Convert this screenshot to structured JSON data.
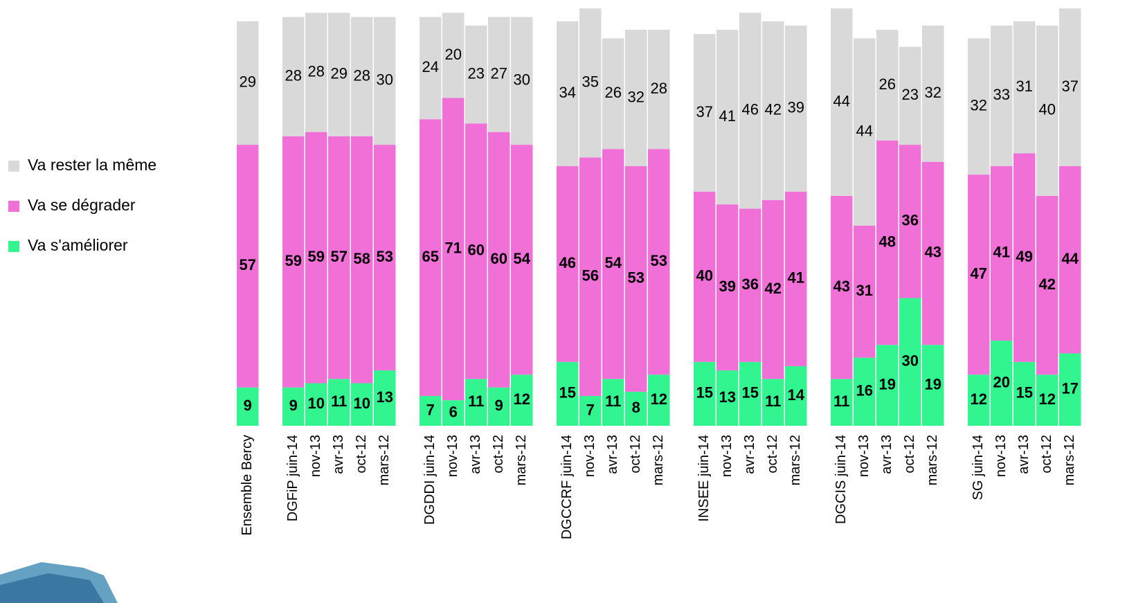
{
  "chart_data": {
    "type": "stacked_bar",
    "categories": [
      "Ensemble Bercy",
      null,
      "DGFiP juin-14",
      "nov-13",
      "avr-13",
      "oct-12",
      "mars-12",
      null,
      "DGDDI juin-14",
      "nov-13",
      "avr-13",
      "oct-12",
      "mars-12",
      null,
      "DGCCRF juin-14",
      "nov-13",
      "avr-13",
      "oct-12",
      "mars-12",
      null,
      "INSEE juin-14",
      "nov-13",
      "avr-13",
      "oct-12",
      "mars-12",
      null,
      "DGCIS juin-14",
      "nov-13",
      "avr-13",
      "oct-12",
      "mars-12",
      null,
      "SG juin-14",
      "nov-13",
      "avr-13",
      "oct-12",
      "mars-12"
    ],
    "series": [
      {
        "name": "Va s'améliorer",
        "color": "#33f590",
        "values": [
          9,
          null,
          9,
          10,
          11,
          10,
          13,
          null,
          7,
          6,
          11,
          9,
          12,
          null,
          15,
          7,
          11,
          8,
          12,
          null,
          15,
          13,
          15,
          11,
          14,
          null,
          11,
          16,
          19,
          30,
          19,
          null,
          12,
          20,
          15,
          12,
          17
        ]
      },
      {
        "name": "Va se dégrader",
        "color": "#f070d8",
        "values": [
          57,
          null,
          59,
          59,
          57,
          58,
          53,
          null,
          65,
          71,
          60,
          60,
          54,
          null,
          46,
          56,
          54,
          53,
          53,
          null,
          40,
          39,
          36,
          42,
          41,
          null,
          43,
          31,
          48,
          36,
          43,
          null,
          47,
          41,
          49,
          42,
          44
        ]
      },
      {
        "name": "Va rester la même",
        "color": "#d9d9d9",
        "values": [
          29,
          null,
          28,
          28,
          29,
          28,
          30,
          null,
          24,
          20,
          23,
          27,
          30,
          null,
          34,
          35,
          26,
          32,
          28,
          null,
          37,
          41,
          46,
          42,
          39,
          null,
          44,
          44,
          26,
          23,
          32,
          null,
          32,
          33,
          31,
          40,
          37
        ]
      }
    ],
    "legend": "left"
  }
}
